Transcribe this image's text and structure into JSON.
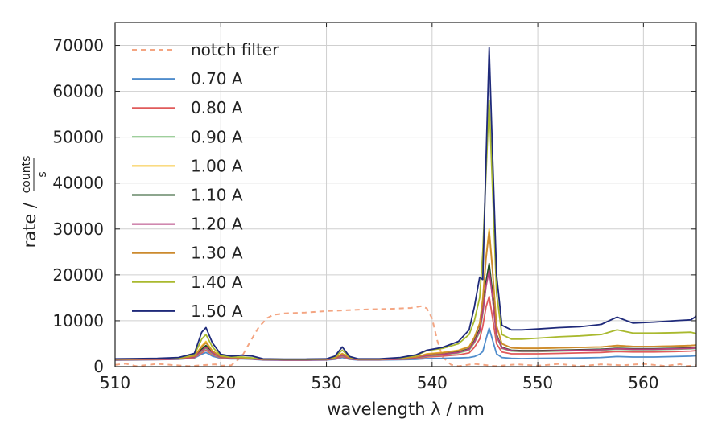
{
  "chart_data": {
    "type": "line",
    "title": "",
    "xlabel": "wavelength λ / nm",
    "ylabel": "rate / counts/s",
    "ylabel_main": "rate /",
    "ylabel_num": "counts",
    "ylabel_den": "s",
    "xlim": [
      510,
      565
    ],
    "ylim": [
      0,
      75000
    ],
    "xticks": [
      510,
      520,
      530,
      540,
      550,
      560
    ],
    "yticks": [
      0,
      10000,
      20000,
      30000,
      40000,
      50000,
      60000,
      70000
    ],
    "grid": true,
    "legend_position": "top-left",
    "filter": {
      "name": "notch filter",
      "color": "#f4a582",
      "style": "dashed",
      "x": [
        510,
        511,
        512,
        514,
        517,
        519.5,
        520,
        521,
        522,
        522.8,
        523.6,
        524.4,
        525,
        526,
        528,
        530,
        532,
        534,
        536,
        538,
        539,
        539.5,
        540,
        540.5,
        541,
        541.8,
        542.5,
        544,
        546,
        548,
        550,
        552,
        554,
        556,
        558,
        560,
        562,
        563.5,
        564,
        565
      ],
      "y": [
        400,
        650,
        100,
        600,
        100,
        500,
        200,
        300,
        2200,
        5500,
        8600,
        10600,
        11300,
        11600,
        11800,
        12100,
        12300,
        12500,
        12600,
        12800,
        13200,
        12700,
        10500,
        5600,
        2100,
        400,
        100,
        600,
        100,
        500,
        200,
        600,
        100,
        500,
        300,
        600,
        150,
        550,
        100,
        300
      ]
    },
    "x": [
      510,
      512,
      514,
      516,
      517.5,
      518.2,
      518.6,
      519.2,
      520,
      521,
      522,
      523,
      524,
      526,
      528,
      530,
      530.8,
      531.5,
      532.2,
      533,
      535,
      537,
      538.5,
      539.5,
      541,
      542.5,
      543.5,
      544,
      544.5,
      544.8,
      545.1,
      545.4,
      545.7,
      546.1,
      546.6,
      547.5,
      548.5,
      550,
      552,
      554,
      556,
      557.5,
      559,
      561,
      563,
      564.5,
      565
    ],
    "series": [
      {
        "name": "0.70 A",
        "color": "#4f8ccc",
        "values": [
          1400,
          1450,
          1500,
          1600,
          1900,
          2700,
          3100,
          2300,
          1800,
          1700,
          1700,
          1600,
          1450,
          1400,
          1400,
          1450,
          1600,
          2000,
          1600,
          1450,
          1450,
          1500,
          1600,
          1750,
          1800,
          1900,
          2000,
          2200,
          2700,
          3300,
          6000,
          8400,
          6000,
          2800,
          2000,
          1800,
          1750,
          1800,
          1850,
          1900,
          2000,
          2200,
          2100,
          2100,
          2200,
          2300,
          2400
        ]
      },
      {
        "name": "0.80 A",
        "color": "#e05b5b",
        "values": [
          1450,
          1500,
          1550,
          1650,
          2000,
          3000,
          3600,
          2600,
          1900,
          1750,
          1750,
          1650,
          1500,
          1450,
          1450,
          1500,
          1700,
          2200,
          1700,
          1500,
          1500,
          1600,
          1800,
          2100,
          2300,
          2600,
          3000,
          4200,
          6000,
          8800,
          13000,
          15300,
          11000,
          5000,
          3200,
          2800,
          2800,
          2800,
          2900,
          3000,
          3100,
          3300,
          3200,
          3200,
          3300,
          3400,
          3500
        ]
      },
      {
        "name": "0.90 A",
        "color": "#7fbf7b",
        "values": [
          1500,
          1550,
          1600,
          1700,
          2100,
          3300,
          4000,
          2800,
          2000,
          1800,
          1800,
          1700,
          1550,
          1500,
          1500,
          1550,
          1750,
          2400,
          1750,
          1550,
          1550,
          1700,
          1900,
          2300,
          2600,
          3000,
          3600,
          5200,
          7500,
          11500,
          17500,
          21500,
          15500,
          6500,
          4000,
          3400,
          3300,
          3300,
          3400,
          3500,
          3600,
          3800,
          3700,
          3700,
          3800,
          3900,
          4000
        ]
      },
      {
        "name": "1.00 A",
        "color": "#f7c537",
        "values": [
          1600,
          1650,
          1700,
          1800,
          2300,
          4500,
          5500,
          3500,
          2200,
          2000,
          1950,
          1800,
          1600,
          1550,
          1550,
          1600,
          1900,
          2900,
          1900,
          1600,
          1600,
          1800,
          2100,
          2800,
          3100,
          3600,
          4400,
          6400,
          9500,
          15000,
          24000,
          30000,
          22000,
          9000,
          5000,
          4100,
          4000,
          4000,
          4100,
          4200,
          4300,
          4600,
          4400,
          4400,
          4500,
          4600,
          4700
        ]
      },
      {
        "name": "1.10 A",
        "color": "#1b4d1e",
        "values": [
          1550,
          1600,
          1650,
          1750,
          2200,
          3800,
          4600,
          3100,
          2100,
          1900,
          1900,
          1750,
          1550,
          1500,
          1500,
          1550,
          1800,
          2600,
          1800,
          1550,
          1550,
          1750,
          2000,
          2500,
          2800,
          3200,
          3900,
          5600,
          8200,
          12500,
          18500,
          22500,
          16500,
          7000,
          4200,
          3600,
          3500,
          3500,
          3600,
          3700,
          3800,
          4000,
          3900,
          3900,
          4000,
          4100,
          4200
        ]
      },
      {
        "name": "1.20 A",
        "color": "#b5417f",
        "values": [
          1500,
          1550,
          1600,
          1700,
          2100,
          3500,
          4200,
          3000,
          2050,
          1850,
          1850,
          1700,
          1500,
          1450,
          1450,
          1500,
          1750,
          2500,
          1750,
          1500,
          1500,
          1700,
          1950,
          2400,
          2700,
          3100,
          3800,
          5400,
          7800,
          12000,
          17500,
          21000,
          15500,
          6800,
          4100,
          3500,
          3400,
          3400,
          3500,
          3600,
          3700,
          3900,
          3800,
          3800,
          3900,
          4000,
          4100
        ]
      },
      {
        "name": "1.30 A",
        "color": "#cc8a2e",
        "values": [
          1600,
          1650,
          1700,
          1800,
          2300,
          4300,
          5200,
          3400,
          2200,
          2000,
          1950,
          1800,
          1600,
          1550,
          1550,
          1600,
          1900,
          2800,
          1900,
          1600,
          1600,
          1800,
          2100,
          2700,
          3000,
          3500,
          4300,
          6300,
          9300,
          14500,
          23500,
          29500,
          21500,
          8800,
          5000,
          4100,
          4000,
          4000,
          4100,
          4200,
          4300,
          4600,
          4400,
          4400,
          4500,
          4600,
          4700
        ]
      },
      {
        "name": "1.40 A",
        "color": "#a9b92e",
        "values": [
          1650,
          1700,
          1750,
          1900,
          2600,
          6000,
          7000,
          4300,
          2400,
          2100,
          2100,
          1900,
          1650,
          1600,
          1600,
          1650,
          2100,
          3600,
          2100,
          1650,
          1650,
          1900,
          2400,
          3500,
          4000,
          5000,
          7000,
          10000,
          15000,
          25000,
          42000,
          58000,
          40000,
          16000,
          7000,
          6000,
          6000,
          6200,
          6500,
          6700,
          7000,
          8000,
          7300,
          7300,
          7400,
          7500,
          7200
        ]
      },
      {
        "name": "1.50 A",
        "color": "#1f2a7a",
        "values": [
          1700,
          1750,
          1800,
          2000,
          2900,
          7500,
          8500,
          5200,
          2700,
          2300,
          2500,
          2300,
          1700,
          1650,
          1650,
          1700,
          2300,
          4300,
          2200,
          1700,
          1700,
          2000,
          2600,
          3600,
          4200,
          5500,
          8000,
          13000,
          19500,
          19000,
          45000,
          69500,
          48000,
          20000,
          9000,
          8000,
          8000,
          8200,
          8500,
          8700,
          9200,
          10800,
          9500,
          9700,
          10000,
          10200,
          11000
        ]
      }
    ]
  }
}
